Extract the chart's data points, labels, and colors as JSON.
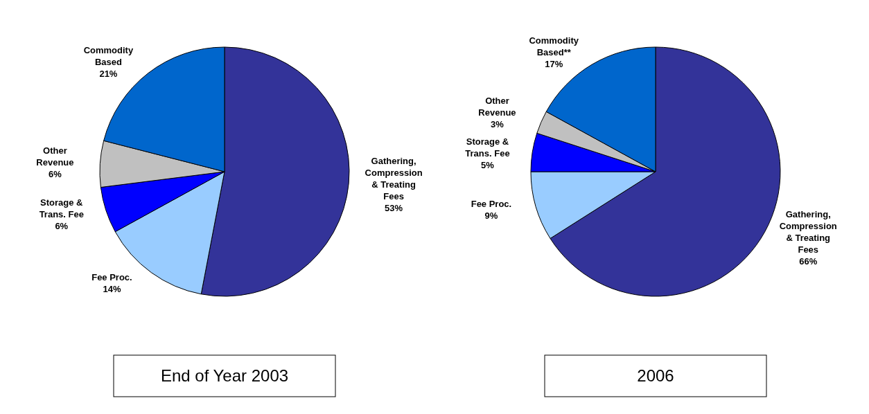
{
  "chart_data": [
    {
      "type": "pie",
      "title": "End of Year 2003",
      "categories": [
        "Gathering,\nCompression\n& Treating\nFees",
        "Fee Proc.",
        "Storage &\nTrans. Fee",
        "Other\nRevenue",
        "Commodity\nBased"
      ],
      "values": [
        53,
        14,
        6,
        6,
        21
      ],
      "colors": [
        "#333399",
        "#99ccff",
        "#0000ff",
        "#c0c0c0",
        "#0066cc"
      ],
      "value_labels": [
        "53%",
        "14%",
        "6%",
        "6%",
        "21%"
      ]
    },
    {
      "type": "pie",
      "title": "2006",
      "categories": [
        "Gathering,\nCompression\n& Treating\nFees",
        "Fee Proc.",
        "Storage &\nTrans. Fee",
        "Other\nRevenue",
        "Commodity\nBased**"
      ],
      "values": [
        66,
        9,
        5,
        3,
        17
      ],
      "colors": [
        "#333399",
        "#99ccff",
        "#0000ff",
        "#c0c0c0",
        "#0066cc"
      ],
      "value_labels": [
        "66%",
        "9%",
        "5%",
        "3%",
        "17%"
      ]
    }
  ]
}
